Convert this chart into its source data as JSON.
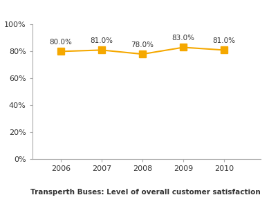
{
  "years": [
    2006,
    2007,
    2008,
    2009,
    2010
  ],
  "values": [
    80.0,
    81.0,
    78.0,
    83.0,
    81.0
  ],
  "labels": [
    "80.0%",
    "81.0%",
    "78.0%",
    "83.0%",
    "81.0%"
  ],
  "line_color": "#F5A800",
  "marker_color": "#F5A800",
  "marker_style": "s",
  "marker_size": 7,
  "line_width": 1.5,
  "title": "Transperth Buses: Level of overall customer satisfaction",
  "title_fontsize": 7.5,
  "ylim": [
    0,
    100
  ],
  "yticks": [
    0,
    20,
    40,
    60,
    80,
    100
  ],
  "ytick_labels": [
    "0%",
    "20%",
    "40%",
    "60%",
    "80%",
    "100%"
  ],
  "xlim": [
    2005.3,
    2010.9
  ],
  "annotation_fontsize": 7.5,
  "tick_fontsize": 8,
  "background_color": "#ffffff",
  "spine_color": "#aaaaaa",
  "text_color": "#333333"
}
